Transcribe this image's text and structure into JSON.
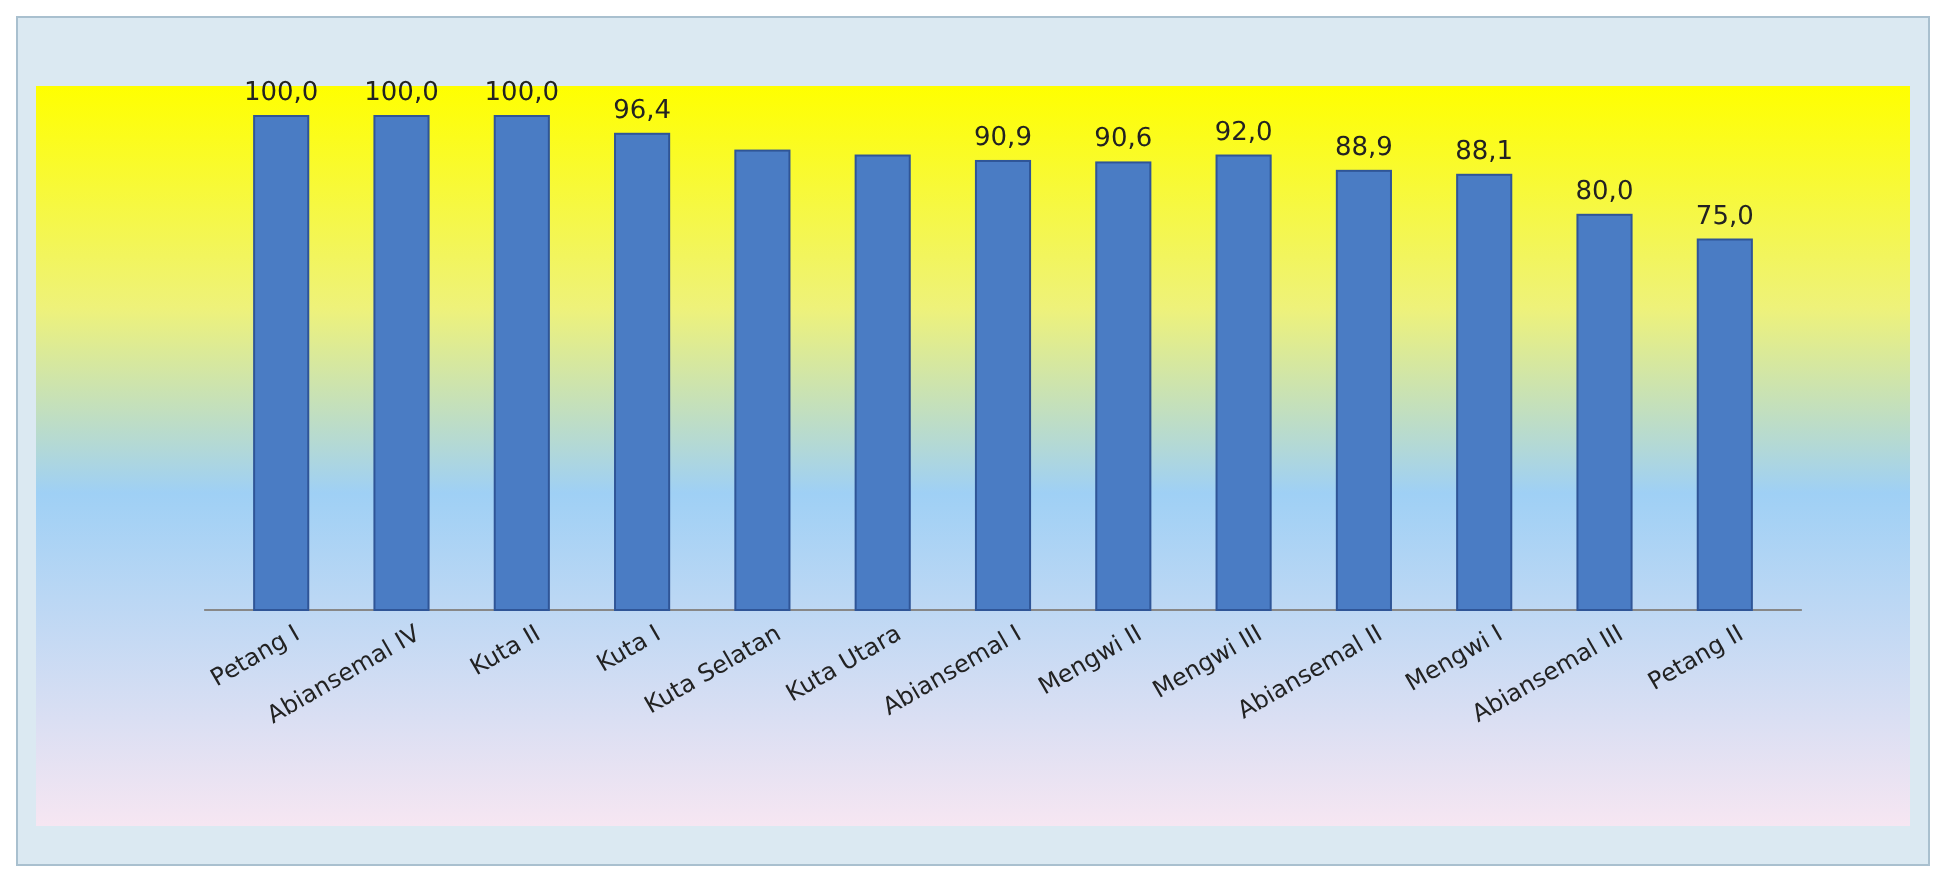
{
  "chart_data": {
    "type": "bar",
    "categories": [
      "Petang I",
      "Abiansemal IV",
      "Kuta II",
      "Kuta I",
      "Kuta Selatan",
      "Kuta Utara",
      "Abiansemal I",
      "Mengwi II",
      "Mengwi III",
      "Abiansemal II",
      "Mengwi I",
      "Abiansemal III",
      "Petang II"
    ],
    "values": [
      100.0,
      100.0,
      100.0,
      96.4,
      93,
      92,
      90.9,
      90.6,
      92.0,
      88.9,
      88.1,
      80.0,
      75.0
    ],
    "value_labels": [
      "100,0",
      "100,0",
      "100,0",
      "96,4",
      null,
      null,
      "90,9",
      "90,6",
      "92,0",
      "88,9",
      "88,1",
      "80,0",
      "75,0"
    ],
    "color": "#4a7cc4",
    "ylim": [
      0,
      100
    ]
  }
}
